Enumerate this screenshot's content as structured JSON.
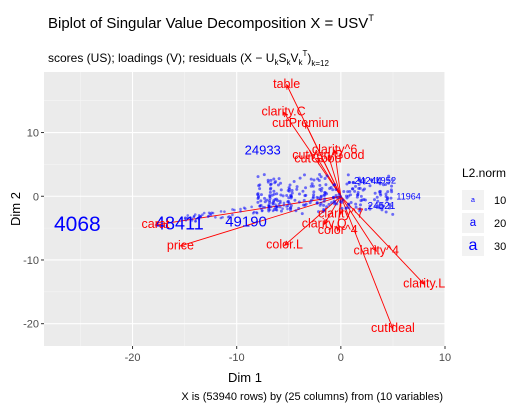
{
  "chart_data": {
    "type": "scatter",
    "title": "Biplot of Singular Value Decomposition X = USV",
    "title_sup": "T",
    "subtitle_parts": [
      "scores (US); loadings (V); residuals (X",
      "U",
      "k",
      "S",
      "k",
      "V",
      "k",
      "T",
      ")",
      "k=12"
    ],
    "xlabel": "Dim 1",
    "ylabel": "Dim 2",
    "xlim": [
      -28.5,
      10
    ],
    "ylim": [
      -23.5,
      19.5
    ],
    "x_ticks": [
      -20,
      -10,
      0,
      10
    ],
    "y_ticks": [
      -20,
      -10,
      0,
      10
    ],
    "grid": true,
    "caption": "X is (53940 rows) by (25 columns) from (10 variables)",
    "legend": {
      "title": "L2.norm",
      "position": "right",
      "entries": [
        {
          "label": "10",
          "size": 10
        },
        {
          "label": "20",
          "size": 20
        },
        {
          "label": "30",
          "size": 30
        }
      ]
    },
    "colors": {
      "scores": "#0000ff",
      "loadings": "#ff0000",
      "panel": "#ebebeb",
      "grid": "#ffffff"
    },
    "scores": [
      {
        "label": "4068",
        "x": -25.3,
        "y": -4.6,
        "norm": 30
      },
      {
        "label": "48411",
        "x": -15.5,
        "y": -4.5,
        "norm": 24
      },
      {
        "label": "49190",
        "x": -9.1,
        "y": -4.1,
        "norm": 18
      },
      {
        "label": "24933",
        "x": -7.5,
        "y": 7.1,
        "norm": 14
      },
      {
        "label": "24521",
        "x": 3.9,
        "y": -1.6,
        "norm": 8
      },
      {
        "label": "24244",
        "x": 2.6,
        "y": 2.3,
        "norm": 8
      },
      {
        "label": "11964",
        "x": 6.5,
        "y": -0.1,
        "norm": 6
      },
      {
        "label": "1952",
        "x": 4.3,
        "y": 2.4,
        "norm": 7
      }
    ],
    "loadings": [
      {
        "label": "table",
        "x": -5.2,
        "y": 17.5
      },
      {
        "label": "clarity.C",
        "x": -5.5,
        "y": 13.2
      },
      {
        "label": "cutPremium",
        "x": -3.4,
        "y": 11.4
      },
      {
        "label": "clarity^6",
        "x": -0.6,
        "y": 7.2
      },
      {
        "label": "cutVeryGood",
        "x": -1.2,
        "y": 6.4
      },
      {
        "label": "cutGood",
        "x": -2.2,
        "y": 5.8
      },
      {
        "label": "clarity^7",
        "x": 0.0,
        "y": -2.8
      },
      {
        "label": "clarity.Q",
        "x": -1.6,
        "y": -4.4
      },
      {
        "label": "color^4",
        "x": -0.3,
        "y": -5.4
      },
      {
        "label": "color.L",
        "x": -5.4,
        "y": -7.7
      },
      {
        "label": "clarity^4",
        "x": 3.4,
        "y": -8.6
      },
      {
        "label": "clarity.L",
        "x": 8.0,
        "y": -13.8
      },
      {
        "label": "cutIdeal",
        "x": 5.0,
        "y": -20.8
      },
      {
        "label": "price",
        "x": -15.4,
        "y": -7.8
      },
      {
        "label": "carat",
        "x": -17.8,
        "y": -4.5
      }
    ]
  }
}
